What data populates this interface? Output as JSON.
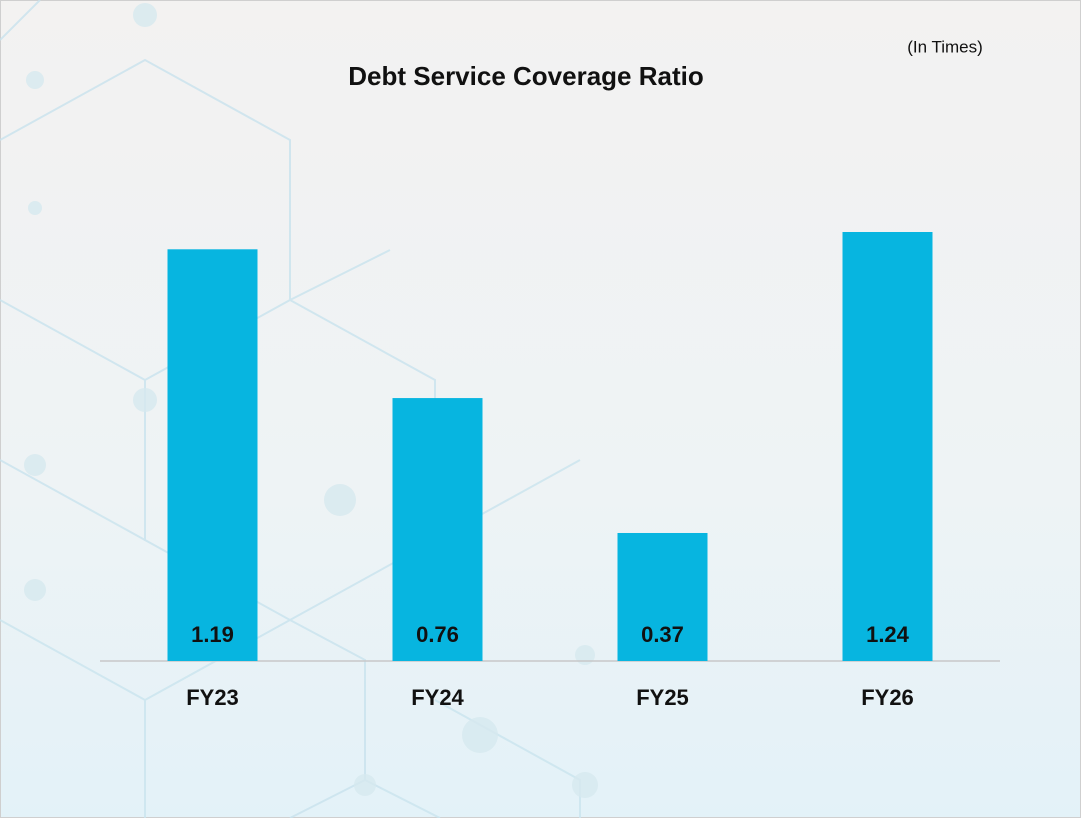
{
  "chart_data": {
    "type": "bar",
    "title": "Debt Service Coverage Ratio",
    "subtitle": "(In Times)",
    "categories": [
      "FY23",
      "FY24",
      "FY25",
      "FY26"
    ],
    "values": [
      1.19,
      0.76,
      0.37,
      1.24
    ],
    "color": "#07b5e0"
  }
}
